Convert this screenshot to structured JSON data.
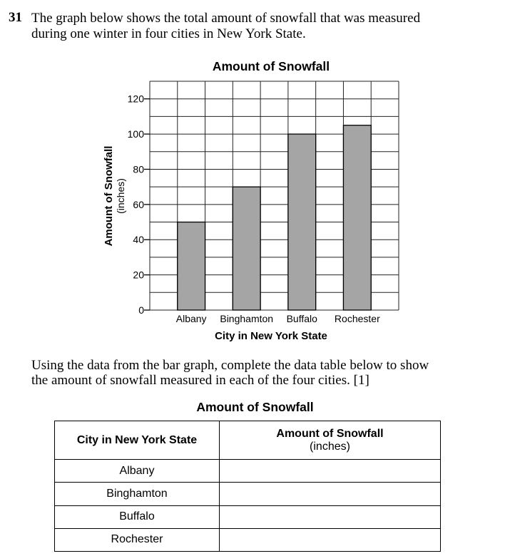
{
  "question": {
    "number": "31",
    "lines": [
      "The graph below shows the total amount of snowfall that was measured",
      "during one winter in four cities in New York State."
    ]
  },
  "chart_data": {
    "type": "bar",
    "title": "Amount of Snowfall",
    "xlabel": "City in New York State",
    "ylabel": "Amount of Snowfall",
    "ylabel_unit": "(inches)",
    "categories": [
      "Albany",
      "Binghamton",
      "Buffalo",
      "Rochester"
    ],
    "values": [
      50,
      70,
      100,
      105
    ],
    "yticks": [
      0,
      20,
      40,
      60,
      80,
      100,
      120
    ],
    "ylim": [
      0,
      130
    ],
    "grid": true,
    "bar_color": "#a5a5a5"
  },
  "instruction": {
    "lines": [
      "Using the data from the bar graph, complete the data table below to show",
      "the amount of snowfall measured in each of the four cities.   [1]"
    ]
  },
  "table": {
    "title": "Amount of Snowfall",
    "header_city": "City in New York State",
    "header_amount": "Amount of Snowfall",
    "header_amount_unit": "(inches)",
    "rows": [
      {
        "city": "Albany",
        "amount": ""
      },
      {
        "city": "Binghamton",
        "amount": ""
      },
      {
        "city": "Buffalo",
        "amount": ""
      },
      {
        "city": "Rochester",
        "amount": ""
      }
    ]
  }
}
